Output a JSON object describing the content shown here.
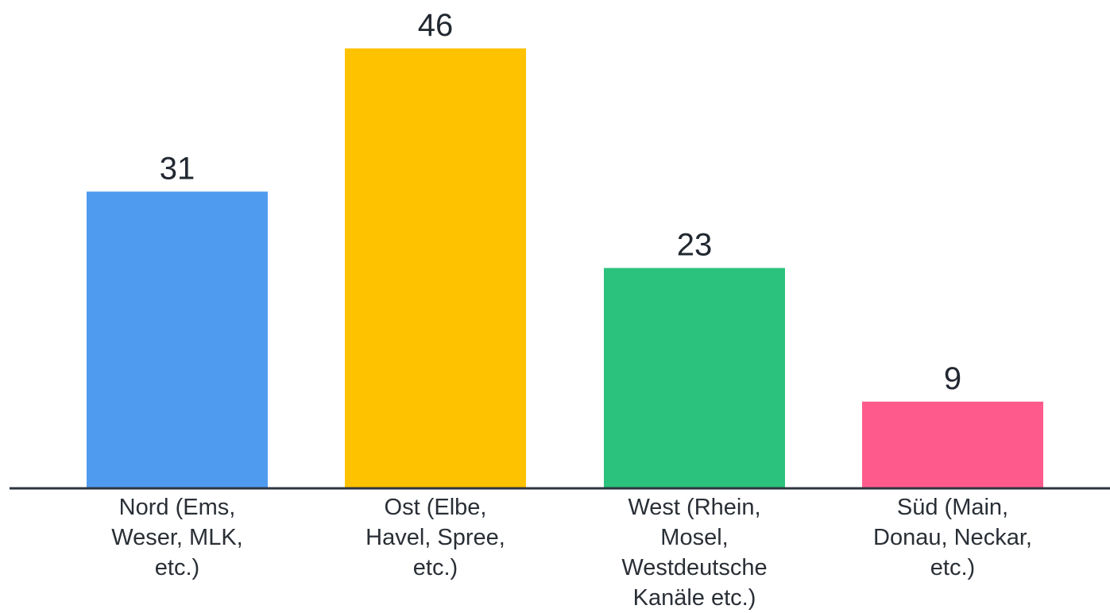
{
  "chart_data": {
    "type": "bar",
    "categories": [
      [
        "Nord (Ems,",
        "Weser, MLK,",
        "etc.)"
      ],
      [
        "Ost (Elbe,",
        "Havel, Spree,",
        "etc.)"
      ],
      [
        "West (Rhein,",
        "Mosel,",
        "Westdeutsche",
        "Kanäle etc.)"
      ],
      [
        "Süd (Main,",
        "Donau, Neckar,",
        "etc.)"
      ]
    ],
    "values": [
      31,
      46,
      23,
      9
    ],
    "value_labels": [
      "31",
      "46",
      "23",
      "9"
    ],
    "colors": [
      "#4f9bf0",
      "#ffc200",
      "#2ac27c",
      "#fe5b8c"
    ],
    "axis_color": "#2e3440",
    "title": "",
    "xlabel": "",
    "ylabel": "",
    "ylim": [
      0,
      46
    ],
    "grid": false,
    "legend": "none"
  }
}
